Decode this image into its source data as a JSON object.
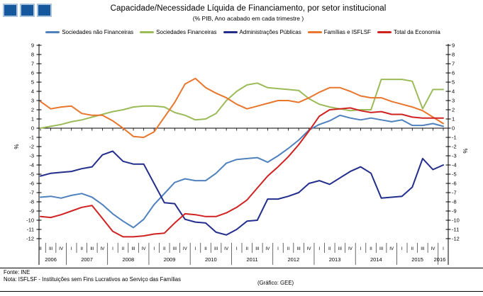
{
  "colors": {
    "logo_fill": "#15589e",
    "logo_border": "#aac4dc",
    "axis": "#000000",
    "separator": "#444444"
  },
  "footer": {
    "source": "Fonte:  INE",
    "note": "Nota: ISFLSF - Instituições sem Fins Lucrativos ao Serviço das Famílias",
    "credit": "(Gráfico:  GEE)"
  },
  "chart_data": {
    "type": "line",
    "title": "Capacidade/Necessidade Líquida de Financiamento, por setor institucional",
    "subtitle": "(% PIB, Ano acabado em cada trimestre )",
    "ylabel_left": "%",
    "ylabel_right": "%",
    "ylim": [
      -12,
      9
    ],
    "ytick_step": 1,
    "grid": false,
    "legend_position": "top",
    "years": [
      {
        "label": "2006",
        "quarters": [
          "II",
          "III",
          "IV"
        ]
      },
      {
        "label": "2007",
        "quarters": [
          "I",
          "II",
          "III",
          "IV"
        ]
      },
      {
        "label": "2008",
        "quarters": [
          "I",
          "II",
          "III",
          "IV"
        ]
      },
      {
        "label": "2009",
        "quarters": [
          "I",
          "II",
          "III",
          "IV"
        ]
      },
      {
        "label": "2010",
        "quarters": [
          "I",
          "II",
          "III",
          "IV"
        ]
      },
      {
        "label": "2011",
        "quarters": [
          "I",
          "II",
          "III",
          "IV"
        ]
      },
      {
        "label": "2012",
        "quarters": [
          "I",
          "II",
          "III",
          "IV"
        ]
      },
      {
        "label": "2013",
        "quarters": [
          "I",
          "II",
          "III",
          "IV"
        ]
      },
      {
        "label": "2014",
        "quarters": [
          "I",
          "II",
          "III",
          "IV"
        ]
      },
      {
        "label": "2015",
        "quarters": [
          "I",
          "II",
          "III",
          "IV"
        ]
      },
      {
        "label": "2016",
        "quarters": [
          "I"
        ]
      }
    ],
    "series": [
      {
        "name": "Sociedades não Financeiras",
        "color": "#4f81bd",
        "values": [
          -7.5,
          -7.4,
          -7.6,
          -7.3,
          -7.1,
          -7.5,
          -8.3,
          -9.3,
          -10.1,
          -10.8,
          -9.9,
          -8.3,
          -7.1,
          -5.9,
          -5.5,
          -5.7,
          -5.7,
          -4.9,
          -3.8,
          -3.4,
          -3.3,
          -3.2,
          -3.7,
          -3.0,
          -2.2,
          -1.3,
          -0.2,
          0.4,
          0.8,
          1.4,
          1.1,
          0.9,
          1.1,
          0.9,
          0.7,
          0.9,
          0.3,
          0.3,
          0.5,
          0.2
        ]
      },
      {
        "name": "Sociedades Financeiras",
        "color": "#9bbb59",
        "values": [
          0.0,
          0.2,
          0.4,
          0.7,
          0.9,
          1.2,
          1.5,
          1.8,
          2.0,
          2.3,
          2.4,
          2.4,
          2.3,
          1.7,
          1.4,
          0.9,
          1.0,
          1.6,
          3.0,
          4.0,
          4.7,
          4.9,
          4.4,
          4.3,
          4.2,
          4.1,
          3.2,
          2.6,
          2.3,
          2.1,
          1.9,
          2.0,
          2.0,
          5.3,
          5.3,
          5.3,
          5.1,
          2.1,
          4.2,
          4.2
        ]
      },
      {
        "name": "Administrações Públicas",
        "color": "#232e8c",
        "values": [
          -5.2,
          -4.9,
          -4.8,
          -4.7,
          -4.4,
          -4.2,
          -2.9,
          -2.5,
          -3.6,
          -3.9,
          -3.9,
          -6.0,
          -8.1,
          -8.2,
          -9.9,
          -10.2,
          -10.3,
          -11.3,
          -11.6,
          -11.0,
          -10.1,
          -10.0,
          -7.7,
          -7.7,
          -7.4,
          -7.0,
          -6.0,
          -5.7,
          -6.1,
          -5.4,
          -4.7,
          -4.2,
          -4.9,
          -7.6,
          -7.5,
          -7.4,
          -6.4,
          -3.3,
          -4.5,
          -4.0
        ]
      },
      {
        "name": "Famílias e ISFLSF",
        "color": "#e8762c",
        "values": [
          2.9,
          2.1,
          2.3,
          2.4,
          1.6,
          1.4,
          1.4,
          0.8,
          0.0,
          -0.9,
          -1.0,
          -0.4,
          1.2,
          2.8,
          4.8,
          5.4,
          4.4,
          3.8,
          3.3,
          2.6,
          2.1,
          2.4,
          2.7,
          3.0,
          3.0,
          2.8,
          3.3,
          3.9,
          4.4,
          4.4,
          4.0,
          3.5,
          3.3,
          3.3,
          2.9,
          2.6,
          2.3,
          1.9,
          1.2,
          0.5
        ]
      },
      {
        "name": "Total da Economia",
        "color": "#d02222",
        "values": [
          -9.6,
          -9.7,
          -9.4,
          -9.0,
          -8.6,
          -8.4,
          -9.8,
          -11.2,
          -11.8,
          -11.8,
          -11.7,
          -11.5,
          -11.4,
          -10.3,
          -9.3,
          -9.4,
          -9.6,
          -9.6,
          -9.2,
          -8.6,
          -7.8,
          -6.5,
          -5.2,
          -4.2,
          -3.1,
          -1.8,
          -0.3,
          1.3,
          2.0,
          2.1,
          2.2,
          1.9,
          1.7,
          1.8,
          1.5,
          1.5,
          1.2,
          1.1,
          1.1,
          1.1
        ]
      }
    ]
  }
}
